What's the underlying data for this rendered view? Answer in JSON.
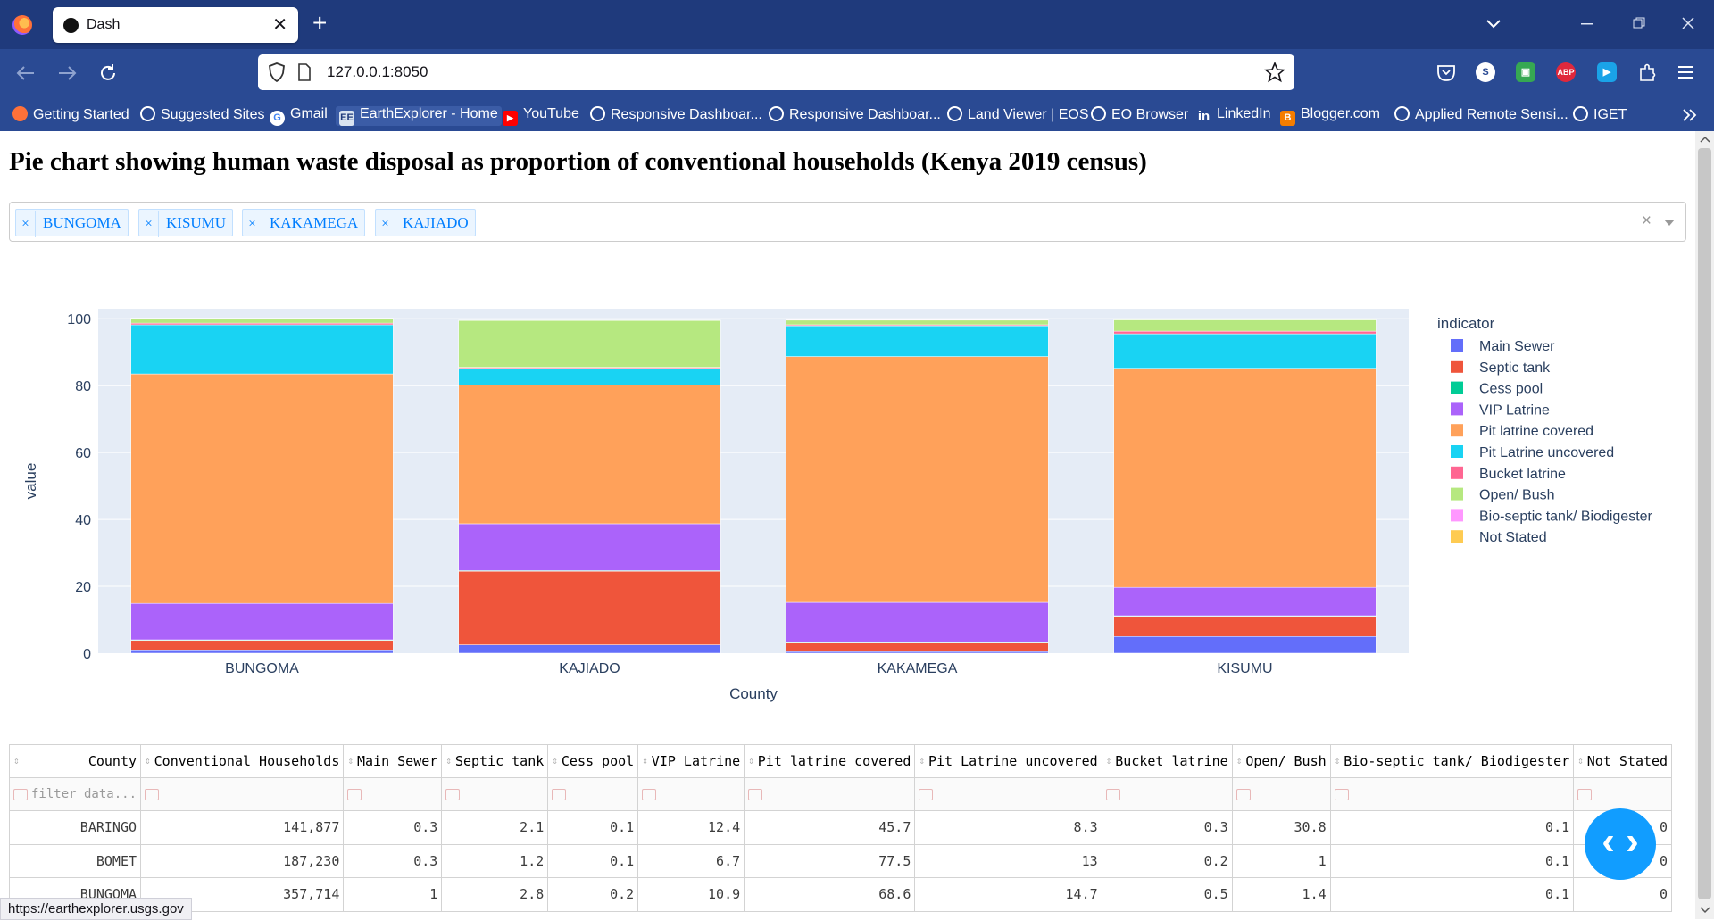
{
  "browser": {
    "tab_title": "Dash",
    "url": "127.0.0.1:8050",
    "new_tab_glyph": "+",
    "close_glyph": "✕",
    "bookmarks": [
      {
        "label": "Getting Started",
        "icon": "firefox-icon"
      },
      {
        "label": "Suggested Sites",
        "icon": "globe-icon"
      },
      {
        "label": "Gmail",
        "icon": "google-icon"
      },
      {
        "label": "EarthExplorer - Home",
        "icon": "earthexplorer-icon"
      },
      {
        "label": "YouTube",
        "icon": "youtube-icon"
      },
      {
        "label": "Responsive Dashboar...",
        "icon": "globe-icon"
      },
      {
        "label": "Responsive Dashboar...",
        "icon": "globe-icon"
      },
      {
        "label": "Land Viewer | EOS",
        "icon": "globe-icon"
      },
      {
        "label": "EO Browser",
        "icon": "globe-icon"
      },
      {
        "label": "LinkedIn",
        "icon": "linkedin-icon"
      },
      {
        "label": "Blogger.com",
        "icon": "blogger-icon"
      },
      {
        "label": "Applied Remote Sensi...",
        "icon": "globe-icon"
      },
      {
        "label": "IGET",
        "icon": "globe-icon"
      }
    ],
    "status_url": "https://earthexplorer.usgs.gov",
    "colors": {
      "titlebar": "#1f3a7c",
      "toolbar": "#2a4a93"
    }
  },
  "page": {
    "title": "Pie chart showing human waste disposal as proportion of conventional households (Kenya 2019 census)",
    "dropdown": {
      "selected": [
        "BUNGOMA",
        "KISUMU",
        "KAKAMEGA",
        "KAJIADO"
      ],
      "chip_remove_glyph": "×",
      "clear_glyph": "×"
    }
  },
  "chart_data": {
    "type": "bar",
    "stacked": true,
    "title": "",
    "xlabel": "County",
    "ylabel": "value",
    "ylim": [
      0,
      100
    ],
    "yticks": [
      0,
      20,
      40,
      60,
      80,
      100
    ],
    "legend_title": "indicator",
    "legend_position": "right",
    "categories": [
      "BUNGOMA",
      "KAJIADO",
      "KAKAMEGA",
      "KISUMU"
    ],
    "series": [
      {
        "name": "Main Sewer",
        "color": "#636efa",
        "values": [
          1,
          2.5,
          0.5,
          5
        ]
      },
      {
        "name": "Septic tank",
        "color": "#ef553b",
        "values": [
          2.8,
          22,
          2.5,
          6
        ]
      },
      {
        "name": "Cess pool",
        "color": "#00cc96",
        "values": [
          0.2,
          0.2,
          0.2,
          0.2
        ]
      },
      {
        "name": "VIP Latrine",
        "color": "#ab63fa",
        "values": [
          10.9,
          14,
          12,
          8.5
        ]
      },
      {
        "name": "Pit latrine covered",
        "color": "#ffa15a",
        "values": [
          68.6,
          41.5,
          73.5,
          65.5
        ]
      },
      {
        "name": "Pit Latrine uncovered",
        "color": "#19d3f3",
        "values": [
          14.7,
          5,
          9.2,
          10.3
        ]
      },
      {
        "name": "Bucket latrine",
        "color": "#ff6692",
        "values": [
          0.5,
          0.3,
          0.3,
          0.8
        ]
      },
      {
        "name": "Open/ Bush",
        "color": "#b6e880",
        "values": [
          1.4,
          14,
          1.4,
          3.4
        ]
      },
      {
        "name": "Bio-septic tank/ Biodigester",
        "color": "#ff97ff",
        "values": [
          0.1,
          0.1,
          0.1,
          0.1
        ]
      },
      {
        "name": "Not Stated",
        "color": "#fecb52",
        "values": [
          0,
          0,
          0,
          0
        ]
      }
    ]
  },
  "table": {
    "columns": [
      "County",
      "Conventional Households",
      "Main Sewer",
      "Septic tank",
      "Cess pool",
      "VIP Latrine",
      "Pit latrine covered",
      "Pit Latrine uncovered",
      "Bucket latrine",
      "Open/ Bush",
      "Bio-septic tank/ Biodigester",
      "Not Stated"
    ],
    "filter_placeholder": "filter data...",
    "rows": [
      [
        "BARINGO",
        "141,877",
        "0.3",
        "2.1",
        "0.1",
        "12.4",
        "45.7",
        "8.3",
        "0.3",
        "30.8",
        "0.1",
        "0"
      ],
      [
        "BOMET",
        "187,230",
        "0.3",
        "1.2",
        "0.1",
        "6.7",
        "77.5",
        "13",
        "0.2",
        "1",
        "0.1",
        "0"
      ],
      [
        "BUNGOMA",
        "357,714",
        "1",
        "2.8",
        "0.2",
        "10.9",
        "68.6",
        "14.7",
        "0.5",
        "1.4",
        "0.1",
        "0"
      ]
    ]
  },
  "fab": {
    "glyph": "‹ ›"
  }
}
